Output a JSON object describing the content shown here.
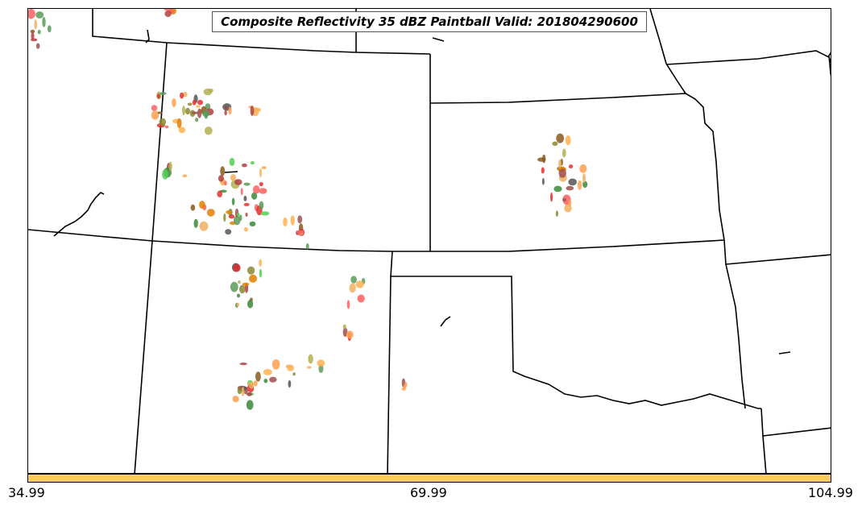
{
  "title": "Composite Reflectivity 35 dBZ Paintball Valid: 201804290600",
  "colorbar": {
    "color": "#ffc966",
    "ticks": [
      "34.99",
      "69.99",
      "104.99"
    ]
  },
  "palette": [
    "#e03030",
    "#ff6060",
    "#ffa050",
    "#f0b060",
    "#50d050",
    "#3a8a3a",
    "#5a9a5a",
    "#b04040",
    "#a05050",
    "#b0b050",
    "#e08000",
    "#8a5a20",
    "#555555",
    "#8a8a30",
    "#ffb050"
  ]
}
